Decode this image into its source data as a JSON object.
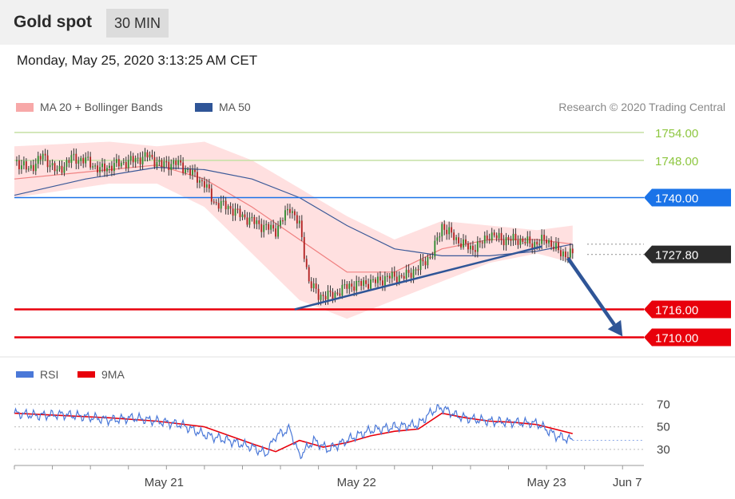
{
  "header": {
    "instrument": "Gold spot",
    "timeframe": "30 MIN"
  },
  "timestamp": "Monday, May 25, 2020 3:13:25 AM CET",
  "legend": {
    "ma20_label": "MA 20 + Bollinger Bands",
    "ma50_label": "MA 50",
    "copyright": "Research © 2020 Trading Central"
  },
  "rsi_legend": {
    "rsi_label": "RSI",
    "ma_label": "9MA"
  },
  "colors": {
    "resistance": "#8dc63f",
    "pivot": "#1a73e8",
    "support": "#e8000b",
    "current": "#2b2b2b",
    "up_candle": "#2e8b2e",
    "down_candle": "#b22222",
    "bollinger": "#ffd6d6",
    "ma20": "#f08080",
    "ma50": "#3b5998",
    "trend": "#2f5597",
    "rsi": "#4a78d8",
    "rsi_ma": "#e8000b"
  },
  "levels": [
    {
      "label": "1754.00",
      "value": 1754,
      "kind": "resistance"
    },
    {
      "label": "1748.00",
      "value": 1748,
      "kind": "resistance"
    },
    {
      "label": "1740.00",
      "value": 1740,
      "kind": "pivot"
    },
    {
      "label": "1727.80",
      "value": 1727.8,
      "kind": "current"
    },
    {
      "label": "1716.00",
      "value": 1716,
      "kind": "support"
    },
    {
      "label": "1710.00",
      "value": 1710,
      "kind": "support"
    }
  ],
  "chart_data": {
    "type": "candlestick",
    "title": "Gold spot",
    "timeframe": "30 MIN",
    "y_range": [
      1707,
      1755
    ],
    "x_range": [
      0,
      265
    ],
    "x_axis_labels": [
      {
        "label": "May 21",
        "t": 63
      },
      {
        "label": "May 22",
        "t": 144
      },
      {
        "label": "May 23",
        "t": 224
      },
      {
        "label": "Jun 7",
        "t": 258
      }
    ],
    "price_anchors": [
      [
        0,
        1748
      ],
      [
        6,
        1746
      ],
      [
        12,
        1749
      ],
      [
        18,
        1745.5
      ],
      [
        24,
        1748.5
      ],
      [
        30,
        1748
      ],
      [
        36,
        1746
      ],
      [
        42,
        1747
      ],
      [
        50,
        1748
      ],
      [
        56,
        1749
      ],
      [
        62,
        1747
      ],
      [
        68,
        1747.5
      ],
      [
        74,
        1745.5
      ],
      [
        80,
        1743
      ],
      [
        84,
        1739
      ],
      [
        90,
        1738
      ],
      [
        96,
        1736
      ],
      [
        104,
        1734
      ],
      [
        110,
        1733
      ],
      [
        116,
        1738
      ],
      [
        120,
        1734
      ],
      [
        124,
        1722
      ],
      [
        128,
        1719
      ],
      [
        134,
        1719
      ],
      [
        140,
        1721
      ],
      [
        146,
        1721.5
      ],
      [
        152,
        1722
      ],
      [
        158,
        1723
      ],
      [
        164,
        1723
      ],
      [
        170,
        1725
      ],
      [
        176,
        1728
      ],
      [
        180,
        1734
      ],
      [
        186,
        1731
      ],
      [
        192,
        1729
      ],
      [
        196,
        1730
      ],
      [
        200,
        1732
      ],
      [
        206,
        1731
      ],
      [
        212,
        1731
      ],
      [
        218,
        1730
      ],
      [
        224,
        1731
      ],
      [
        230,
        1728
      ],
      [
        235,
        1727.8
      ]
    ],
    "moving_averages": {
      "ma20": [
        [
          0,
          1744
        ],
        [
          40,
          1746
        ],
        [
          60,
          1747
        ],
        [
          80,
          1744
        ],
        [
          100,
          1738
        ],
        [
          120,
          1731
        ],
        [
          140,
          1724
        ],
        [
          160,
          1724
        ],
        [
          180,
          1729
        ],
        [
          200,
          1731
        ],
        [
          220,
          1731
        ],
        [
          235,
          1730
        ]
      ],
      "ma50": [
        [
          0,
          1740.5
        ],
        [
          30,
          1744
        ],
        [
          60,
          1746.5
        ],
        [
          80,
          1746
        ],
        [
          100,
          1744
        ],
        [
          120,
          1740
        ],
        [
          140,
          1734
        ],
        [
          160,
          1729
        ],
        [
          180,
          1727.5
        ],
        [
          200,
          1727.5
        ],
        [
          220,
          1728.5
        ],
        [
          235,
          1730
        ]
      ],
      "bollinger_upper": [
        [
          0,
          1751
        ],
        [
          40,
          1752
        ],
        [
          60,
          1751
        ],
        [
          80,
          1752
        ],
        [
          100,
          1748
        ],
        [
          120,
          1742
        ],
        [
          140,
          1736
        ],
        [
          160,
          1731
        ],
        [
          180,
          1735
        ],
        [
          200,
          1734
        ],
        [
          220,
          1733
        ],
        [
          235,
          1734
        ]
      ],
      "bollinger_lower": [
        [
          0,
          1740
        ],
        [
          40,
          1743
        ],
        [
          60,
          1743
        ],
        [
          80,
          1738
        ],
        [
          100,
          1728
        ],
        [
          120,
          1718
        ],
        [
          140,
          1714
        ],
        [
          160,
          1718
        ],
        [
          180,
          1722
        ],
        [
          200,
          1726
        ],
        [
          220,
          1728
        ],
        [
          235,
          1726
        ]
      ]
    },
    "trendline": [
      [
        118,
        1716
      ],
      [
        222,
        1729.5
      ]
    ],
    "forecast_arrow": [
      [
        233,
        1727
      ],
      [
        256,
        1710.2
      ]
    ],
    "rsi": {
      "y_range": [
        20,
        78
      ],
      "ticks": [
        70,
        50,
        30
      ],
      "values": [
        [
          0,
          62
        ],
        [
          10,
          60
        ],
        [
          20,
          61
        ],
        [
          30,
          59
        ],
        [
          40,
          56
        ],
        [
          50,
          58
        ],
        [
          60,
          55
        ],
        [
          70,
          52
        ],
        [
          80,
          43
        ],
        [
          90,
          38
        ],
        [
          100,
          32
        ],
        [
          106,
          26
        ],
        [
          110,
          42
        ],
        [
          116,
          48
        ],
        [
          120,
          24
        ],
        [
          126,
          38
        ],
        [
          132,
          30
        ],
        [
          138,
          36
        ],
        [
          144,
          42
        ],
        [
          150,
          47
        ],
        [
          160,
          50
        ],
        [
          170,
          52
        ],
        [
          176,
          64
        ],
        [
          180,
          67
        ],
        [
          186,
          60
        ],
        [
          192,
          57
        ],
        [
          200,
          55
        ],
        [
          210,
          54
        ],
        [
          220,
          53
        ],
        [
          228,
          42
        ],
        [
          235,
          38
        ]
      ],
      "ma9": [
        [
          0,
          62
        ],
        [
          20,
          60
        ],
        [
          40,
          58
        ],
        [
          60,
          55
        ],
        [
          80,
          50
        ],
        [
          100,
          35
        ],
        [
          110,
          28
        ],
        [
          120,
          38
        ],
        [
          130,
          32
        ],
        [
          140,
          36
        ],
        [
          150,
          42
        ],
        [
          160,
          46
        ],
        [
          170,
          48
        ],
        [
          180,
          62
        ],
        [
          190,
          58
        ],
        [
          200,
          55
        ],
        [
          210,
          54
        ],
        [
          220,
          52
        ],
        [
          235,
          44
        ]
      ]
    }
  }
}
